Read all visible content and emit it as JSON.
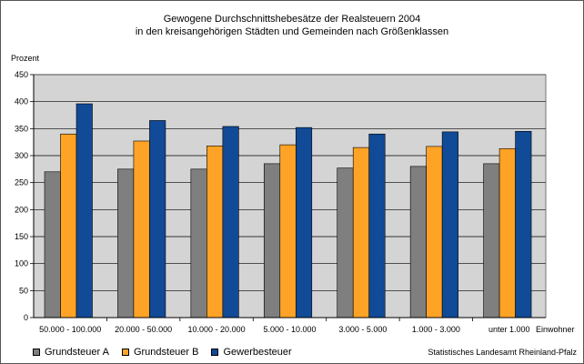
{
  "chart_data": {
    "type": "bar",
    "title_lines": [
      "Gewogene Durchschnittshebesätze der Realsteuern 2004",
      "in den kreisangehörigen Städten und Gemeinden nach Größenklassen"
    ],
    "ylabel": "Prozent",
    "xlabel": "Einwohner",
    "ylim": [
      0,
      450
    ],
    "yticks": [
      0,
      50,
      100,
      150,
      200,
      250,
      300,
      350,
      400,
      450
    ],
    "grid": true,
    "legend_position": "bottom-left",
    "categories": [
      "50.000 - 100.000",
      "20.000 - 50.000",
      "10.000 - 20.000",
      "5.000 - 10.000",
      "3.000 - 5.000",
      "1.000 - 3.000",
      "unter 1.000"
    ],
    "series": [
      {
        "name": "Grundsteuer A",
        "color": "#7f7f7f",
        "values": [
          270,
          275,
          275,
          285,
          277,
          280,
          285
        ]
      },
      {
        "name": "Grundsteuer B",
        "color": "#ffa326",
        "values": [
          340,
          327,
          318,
          320,
          315,
          317,
          313
        ]
      },
      {
        "name": "Gewerbesteuer",
        "color": "#114a96",
        "values": [
          396,
          365,
          354,
          352,
          340,
          344,
          345
        ]
      }
    ],
    "source": "Statistisches Landesamt Rheinland-Pfalz"
  }
}
